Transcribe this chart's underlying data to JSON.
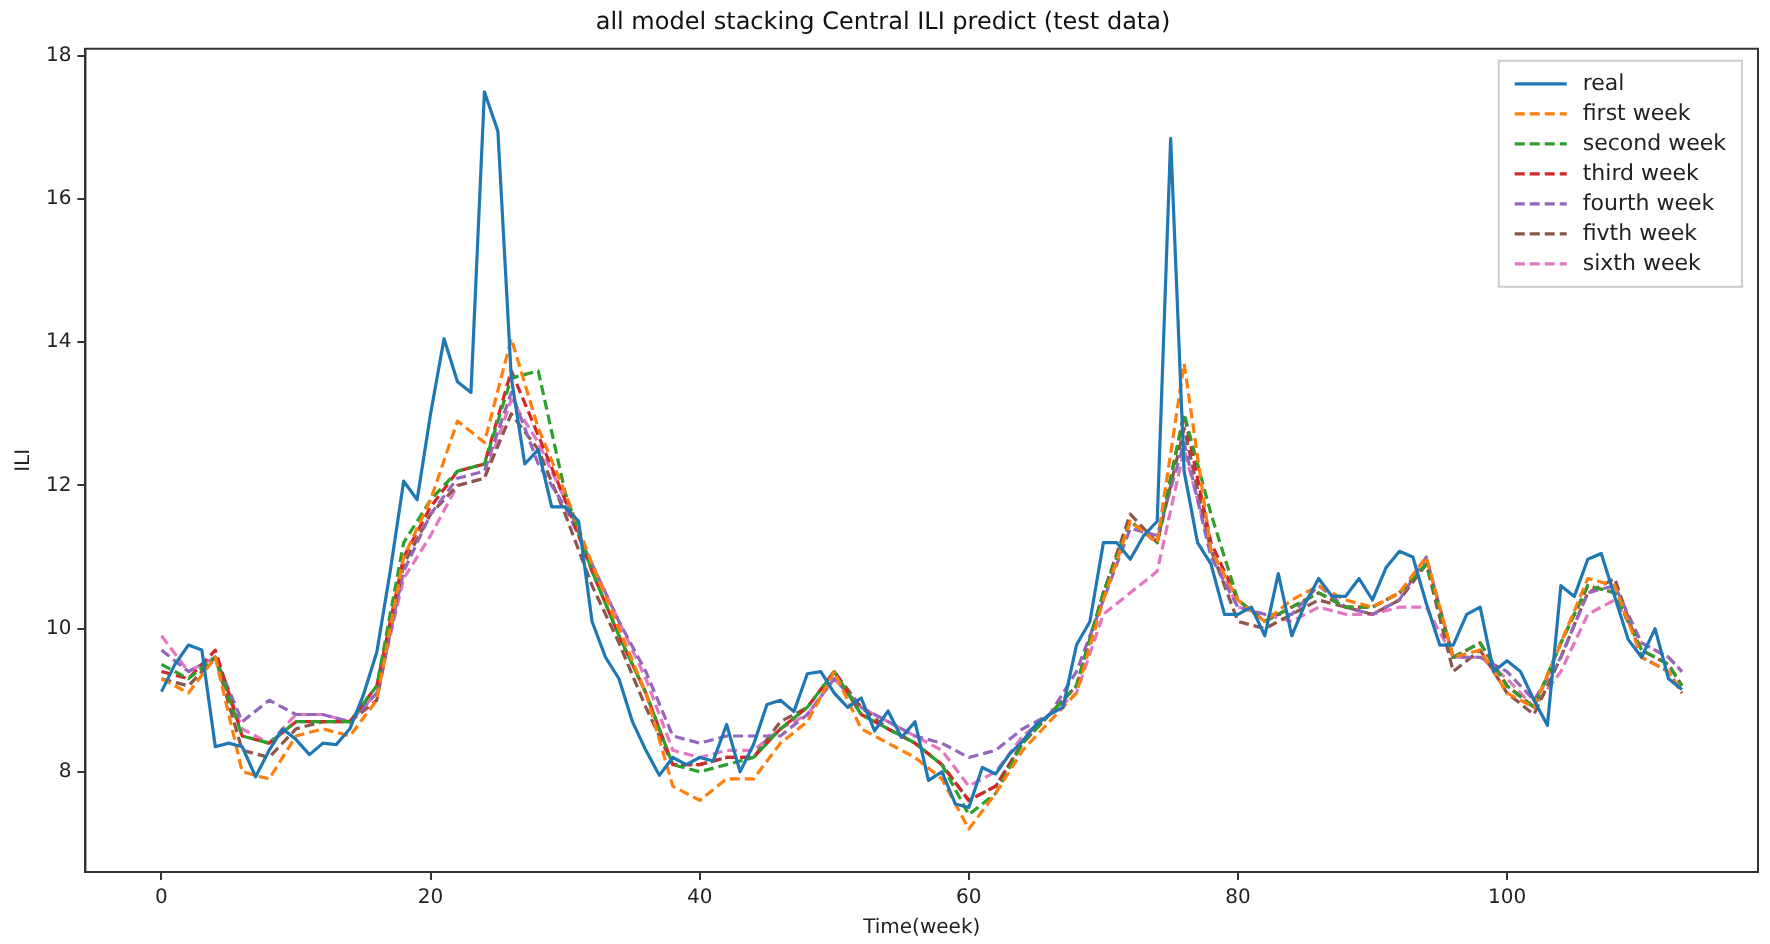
{
  "chart_data": {
    "type": "line",
    "title": "all model stacking Central ILI predict (test data)",
    "xlabel": "Time(week)",
    "ylabel": "ILI",
    "xlim": [
      -5.65,
      118.65
    ],
    "ylim": [
      6.6,
      18.1
    ],
    "xticks": [
      0,
      20,
      40,
      60,
      80,
      100
    ],
    "yticks": [
      8,
      10,
      12,
      14,
      16,
      18
    ],
    "grid": false,
    "legend": "top right",
    "marker": "none",
    "series": [
      {
        "name": "real",
        "color": "#1f77b4",
        "line_style": "solid",
        "x": [
          0,
          1,
          2,
          3,
          4,
          5,
          6,
          7,
          8,
          9,
          10,
          11,
          12,
          13,
          14,
          15,
          16,
          17,
          18,
          19,
          20,
          21,
          22,
          23,
          24,
          25,
          26,
          27,
          28,
          29,
          30,
          31,
          32,
          33,
          34,
          35,
          36,
          37,
          38,
          39,
          40,
          41,
          42,
          43,
          44,
          45,
          46,
          47,
          48,
          49,
          50,
          51,
          52,
          53,
          54,
          55,
          56,
          57,
          58,
          59,
          60,
          61,
          62,
          63,
          64,
          65,
          66,
          67,
          68,
          69,
          70,
          71,
          72,
          73,
          74,
          75,
          76,
          77,
          78,
          79,
          80,
          81,
          82,
          83,
          84,
          85,
          86,
          87,
          88,
          89,
          90,
          91,
          92,
          93,
          94,
          95,
          96,
          97,
          98,
          99,
          100,
          101,
          102,
          103,
          104,
          105,
          106,
          107,
          108,
          109,
          110,
          111,
          112,
          113
        ],
        "values": [
          9.12,
          9.5,
          9.77,
          9.7,
          8.35,
          8.4,
          8.35,
          7.93,
          8.3,
          8.6,
          8.45,
          8.24,
          8.4,
          8.38,
          8.6,
          9.07,
          9.67,
          10.8,
          12.06,
          11.8,
          13.0,
          14.05,
          13.45,
          13.3,
          17.5,
          16.95,
          13.5,
          12.3,
          12.5,
          11.7,
          11.7,
          11.5,
          10.1,
          9.6,
          9.3,
          8.7,
          8.3,
          7.95,
          8.2,
          8.1,
          8.2,
          8.15,
          8.66,
          8.0,
          8.38,
          8.94,
          9.0,
          8.84,
          9.37,
          9.4,
          9.1,
          8.9,
          9.03,
          8.57,
          8.85,
          8.48,
          8.7,
          7.88,
          8.0,
          7.55,
          7.5,
          8.06,
          7.97,
          8.24,
          8.43,
          8.66,
          8.8,
          8.9,
          9.77,
          10.1,
          11.2,
          11.2,
          10.97,
          11.3,
          11.5,
          16.85,
          12.2,
          11.2,
          10.9,
          10.2,
          10.2,
          10.3,
          9.9,
          10.77,
          9.9,
          10.35,
          10.7,
          10.45,
          10.45,
          10.7,
          10.4,
          10.85,
          11.08,
          11.0,
          10.35,
          9.77,
          9.77,
          10.2,
          10.3,
          9.4,
          9.55,
          9.4,
          9.0,
          8.65,
          10.6,
          10.45,
          10.97,
          11.05,
          10.45,
          9.85,
          9.6,
          10.0,
          9.3,
          9.15
        ]
      },
      {
        "name": "first week",
        "color": "#ff7f0e",
        "line_style": "dashed",
        "x": [
          0,
          2,
          4,
          6,
          8,
          10,
          12,
          14,
          16,
          18,
          20,
          22,
          24,
          26,
          28,
          30,
          32,
          34,
          36,
          38,
          40,
          42,
          44,
          46,
          48,
          50,
          52,
          54,
          56,
          58,
          60,
          62,
          64,
          66,
          68,
          70,
          72,
          74,
          76,
          78,
          80,
          82,
          84,
          86,
          88,
          90,
          92,
          94,
          96,
          98,
          100,
          102,
          104,
          106,
          108,
          110,
          112,
          113
        ],
        "values": [
          9.3,
          9.1,
          9.6,
          8.0,
          7.9,
          8.5,
          8.6,
          8.5,
          9.0,
          11.0,
          11.8,
          12.9,
          12.6,
          14.05,
          12.8,
          11.9,
          10.9,
          10.0,
          9.1,
          7.8,
          7.6,
          7.9,
          7.9,
          8.4,
          8.7,
          9.4,
          8.6,
          8.4,
          8.2,
          7.9,
          7.2,
          7.7,
          8.3,
          8.7,
          9.1,
          10.4,
          11.5,
          11.2,
          13.7,
          11.1,
          10.4,
          10.1,
          10.4,
          10.6,
          10.4,
          10.3,
          10.5,
          11.0,
          9.6,
          9.7,
          9.1,
          8.9,
          9.8,
          10.7,
          10.6,
          9.6,
          9.4,
          9.1
        ]
      },
      {
        "name": "second week",
        "color": "#2ca02c",
        "line_style": "dashed",
        "x": [
          0,
          2,
          4,
          6,
          8,
          10,
          12,
          14,
          16,
          18,
          20,
          22,
          24,
          26,
          28,
          30,
          32,
          34,
          36,
          38,
          40,
          42,
          44,
          46,
          48,
          50,
          52,
          54,
          56,
          58,
          60,
          62,
          64,
          66,
          68,
          70,
          72,
          74,
          76,
          78,
          80,
          82,
          84,
          86,
          88,
          90,
          92,
          94,
          96,
          98,
          100,
          102,
          104,
          106,
          108,
          110,
          112,
          113
        ],
        "values": [
          9.5,
          9.3,
          9.6,
          8.5,
          8.4,
          8.7,
          8.7,
          8.7,
          9.2,
          11.2,
          11.8,
          12.2,
          12.3,
          13.5,
          13.6,
          11.9,
          10.8,
          9.9,
          9.1,
          8.1,
          8.0,
          8.1,
          8.2,
          8.6,
          8.9,
          9.4,
          8.8,
          8.6,
          8.4,
          8.1,
          7.4,
          7.7,
          8.4,
          8.8,
          9.2,
          10.5,
          11.5,
          11.2,
          13.0,
          11.6,
          10.4,
          10.1,
          10.3,
          10.5,
          10.3,
          10.3,
          10.5,
          10.9,
          9.6,
          9.8,
          9.2,
          8.9,
          9.8,
          10.6,
          10.5,
          9.7,
          9.5,
          9.2
        ]
      },
      {
        "name": "third week",
        "color": "#d62728",
        "line_style": "dashed",
        "x": [
          0,
          2,
          4,
          6,
          8,
          10,
          12,
          14,
          16,
          18,
          20,
          22,
          24,
          26,
          28,
          30,
          32,
          34,
          36,
          38,
          40,
          42,
          44,
          46,
          48,
          50,
          52,
          54,
          56,
          58,
          60,
          62,
          64,
          66,
          68,
          70,
          72,
          74,
          76,
          78,
          80,
          82,
          84,
          86,
          88,
          90,
          92,
          94,
          96,
          98,
          100,
          102,
          104,
          106,
          108,
          110,
          112,
          113
        ],
        "values": [
          9.4,
          9.3,
          9.7,
          8.5,
          8.4,
          8.7,
          8.7,
          8.7,
          9.2,
          11.0,
          11.7,
          12.2,
          12.3,
          13.6,
          12.7,
          11.8,
          10.8,
          9.9,
          9.1,
          8.1,
          8.1,
          8.2,
          8.2,
          8.6,
          8.9,
          9.4,
          8.8,
          8.6,
          8.4,
          8.1,
          7.6,
          7.8,
          8.4,
          8.8,
          9.2,
          10.5,
          11.5,
          11.2,
          13.0,
          11.2,
          10.4,
          10.1,
          10.3,
          10.5,
          10.3,
          10.3,
          10.5,
          10.9,
          9.6,
          9.8,
          9.2,
          8.9,
          9.8,
          10.6,
          10.5,
          9.7,
          9.5,
          9.2
        ]
      },
      {
        "name": "fourth week",
        "color": "#9467bd",
        "line_style": "dashed",
        "x": [
          0,
          2,
          4,
          6,
          8,
          10,
          12,
          14,
          16,
          18,
          20,
          22,
          24,
          26,
          28,
          30,
          32,
          34,
          36,
          38,
          40,
          42,
          44,
          46,
          48,
          50,
          52,
          54,
          56,
          58,
          60,
          62,
          64,
          66,
          68,
          70,
          72,
          74,
          76,
          78,
          80,
          82,
          84,
          86,
          88,
          90,
          92,
          94,
          96,
          98,
          100,
          102,
          104,
          106,
          108,
          110,
          112,
          113
        ],
        "values": [
          9.7,
          9.4,
          9.6,
          8.7,
          9.0,
          8.8,
          8.8,
          8.7,
          9.1,
          10.8,
          11.6,
          12.1,
          12.2,
          13.3,
          12.3,
          11.7,
          10.9,
          10.1,
          9.4,
          8.5,
          8.4,
          8.5,
          8.5,
          8.5,
          8.8,
          9.3,
          8.9,
          8.7,
          8.5,
          8.4,
          8.2,
          8.3,
          8.6,
          8.8,
          9.4,
          10.4,
          11.4,
          11.3,
          12.6,
          11.0,
          10.3,
          10.2,
          10.2,
          10.6,
          10.3,
          10.2,
          10.4,
          11.0,
          9.6,
          9.6,
          9.4,
          9.0,
          9.6,
          10.5,
          10.6,
          9.8,
          9.6,
          9.4
        ]
      },
      {
        "name": "fivth week",
        "color": "#8c564b",
        "line_style": "dashed",
        "x": [
          0,
          2,
          4,
          6,
          8,
          10,
          12,
          14,
          16,
          18,
          20,
          22,
          24,
          26,
          28,
          30,
          32,
          34,
          36,
          38,
          40,
          42,
          44,
          46,
          48,
          50,
          52,
          54,
          56,
          58,
          60,
          62,
          64,
          66,
          68,
          70,
          72,
          74,
          76,
          78,
          80,
          82,
          84,
          86,
          88,
          90,
          92,
          94,
          96,
          98,
          100,
          102,
          104,
          106,
          108,
          110,
          112,
          113
        ],
        "values": [
          9.3,
          9.2,
          9.6,
          8.3,
          8.2,
          8.6,
          8.7,
          8.7,
          9.0,
          10.9,
          11.6,
          12.0,
          12.1,
          13.0,
          12.5,
          11.6,
          10.6,
          9.8,
          8.9,
          8.1,
          8.1,
          8.2,
          8.2,
          8.7,
          8.9,
          9.4,
          8.9,
          8.6,
          8.4,
          8.1,
          7.6,
          7.8,
          8.4,
          8.8,
          9.2,
          10.5,
          11.6,
          11.2,
          12.8,
          11.1,
          10.1,
          10.0,
          10.2,
          10.4,
          10.3,
          10.2,
          10.4,
          10.9,
          9.4,
          9.7,
          9.1,
          8.8,
          9.6,
          10.5,
          10.7,
          9.6,
          9.4,
          9.1
        ]
      },
      {
        "name": "sixth week",
        "color": "#e377c2",
        "line_style": "dashed",
        "x": [
          0,
          2,
          4,
          6,
          8,
          10,
          12,
          14,
          16,
          18,
          20,
          22,
          24,
          26,
          28,
          30,
          32,
          34,
          36,
          38,
          40,
          42,
          44,
          46,
          48,
          50,
          52,
          54,
          56,
          58,
          60,
          62,
          64,
          66,
          68,
          70,
          72,
          74,
          76,
          78,
          80,
          82,
          84,
          86,
          88,
          90,
          92,
          94,
          96,
          98,
          100,
          102,
          104,
          106,
          108,
          110,
          112,
          113
        ],
        "values": [
          9.9,
          9.4,
          9.6,
          8.6,
          8.4,
          8.8,
          8.8,
          8.7,
          9.1,
          10.7,
          11.3,
          12.0,
          12.1,
          13.2,
          12.6,
          11.8,
          10.9,
          10.1,
          9.3,
          8.3,
          8.2,
          8.3,
          8.3,
          8.6,
          8.8,
          9.3,
          8.9,
          8.7,
          8.5,
          8.3,
          7.8,
          8.0,
          8.5,
          8.8,
          9.1,
          10.2,
          10.5,
          10.8,
          12.5,
          11.1,
          10.3,
          10.2,
          10.1,
          10.3,
          10.2,
          10.2,
          10.3,
          10.3,
          9.6,
          9.6,
          9.3,
          8.9,
          9.4,
          10.2,
          10.4,
          9.8,
          9.6,
          9.4
        ]
      }
    ]
  }
}
